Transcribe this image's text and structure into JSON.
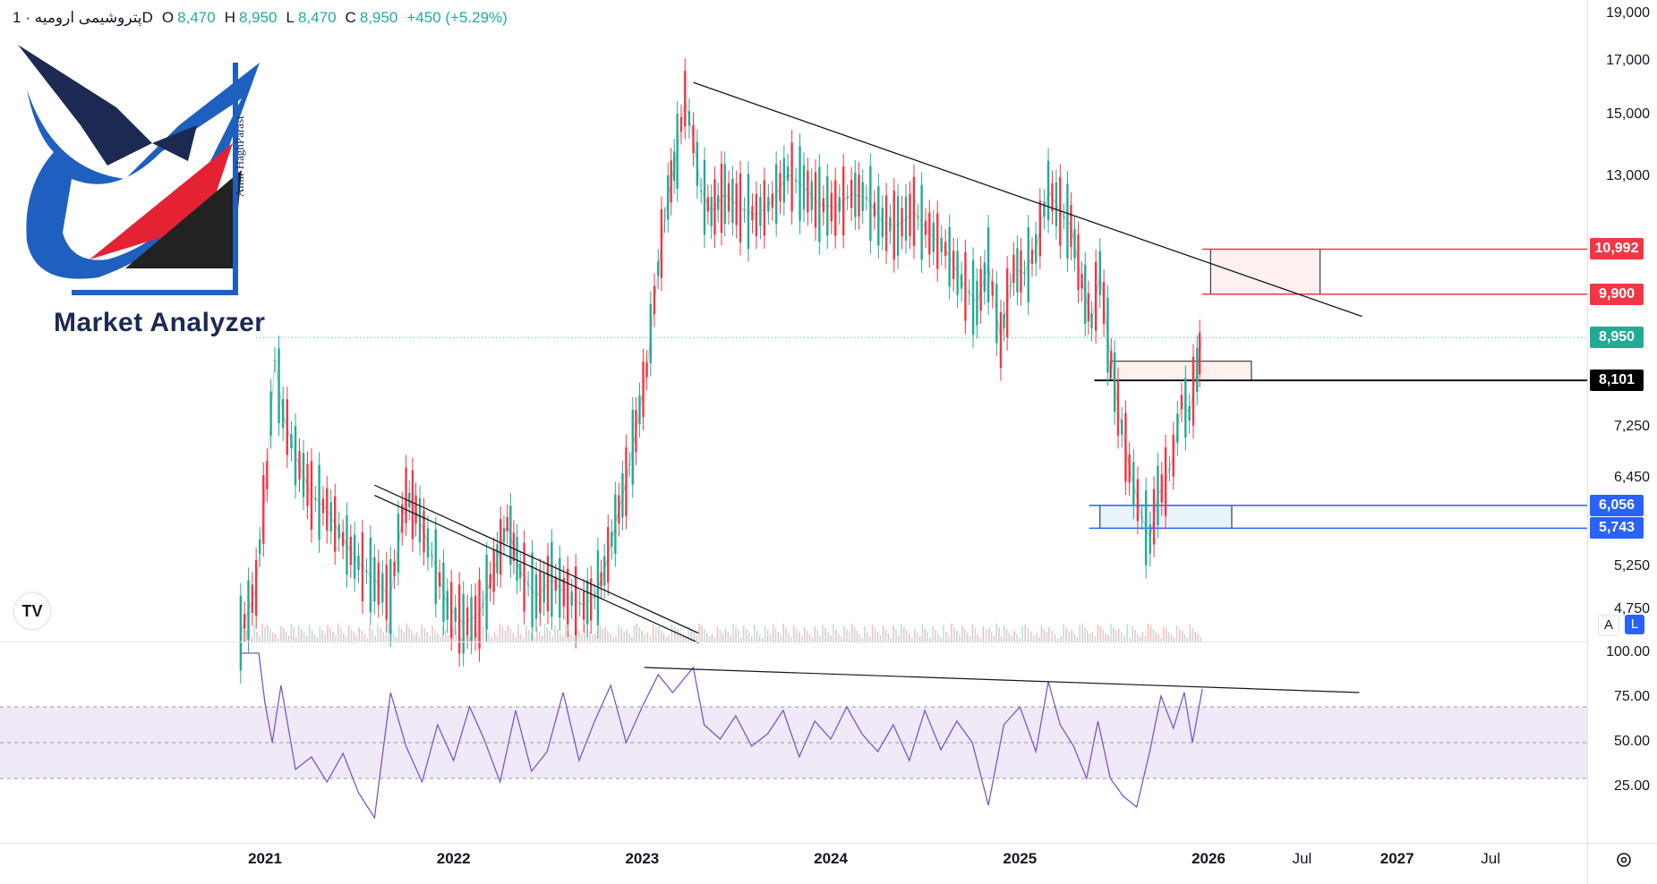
{
  "header": {
    "symbol": "پتروشیمی ارومیه · 1D",
    "o_label": "O",
    "o_value": "8,470",
    "h_label": "H",
    "h_value": "8,950",
    "l_label": "L",
    "l_value": "8,470",
    "c_label": "C",
    "c_value": "8,950",
    "change": "+450 (+5.29%)"
  },
  "logo": {
    "text": "Market Analyzer",
    "signature": "Amir HaghParast"
  },
  "colors": {
    "up": "#22ab94",
    "down": "#f23645",
    "resistance": "#f23645",
    "support": "#2962ff",
    "rsi": "#7e57c2",
    "rsi_band": "#efe9f8",
    "trendline": "#131722"
  },
  "chart_data": [
    {
      "type": "line",
      "title": "",
      "xlabel": "",
      "ylabel": "",
      "x_ticks": [
        "2021",
        "2022",
        "2023",
        "2024",
        "2025",
        "2026",
        "Jul",
        "2027",
        "Jul"
      ],
      "y_ticks": [
        "19,000",
        "17,000",
        "15,000",
        "13,000",
        "10,992",
        "9,900",
        "8,950",
        "8,101",
        "7,250",
        "6,450",
        "6,056",
        "5,743",
        "5,250",
        "4,750"
      ],
      "ylim": [
        4450,
        19300
      ],
      "price_tags": [
        {
          "label": "10,992",
          "value": 10992,
          "kind": "resistance"
        },
        {
          "label": "9,900",
          "value": 9900,
          "kind": "resistance"
        },
        {
          "label": "8,950",
          "value": 8950,
          "kind": "last"
        },
        {
          "label": "8,101",
          "value": 8101,
          "kind": "level"
        },
        {
          "label": "6,056",
          "value": 6056,
          "kind": "support"
        },
        {
          "label": "5,743",
          "value": 5743,
          "kind": "support"
        }
      ],
      "series": [
        {
          "dates": [
            "2020-11-15",
            "2020-12-15",
            "2021-01-05",
            "2021-01-20",
            "2021-02-05",
            "2021-03-01",
            "2021-04-01",
            "2021-05-01",
            "2021-06-01",
            "2021-07-01",
            "2021-08-01",
            "2021-09-01",
            "2021-10-01",
            "2021-10-20",
            "2021-11-20",
            "2021-12-20",
            "2022-01-20",
            "2022-02-20",
            "2022-03-20",
            "2022-04-15",
            "2022-05-10",
            "2022-06-10",
            "2022-07-10",
            "2022-08-10",
            "2022-09-10",
            "2022-10-01",
            "2022-10-20",
            "2022-11-10",
            "2022-12-01",
            "2022-12-20",
            "2023-01-10",
            "2023-02-01",
            "2023-02-20",
            "2023-03-10",
            "2023-03-25",
            "2023-04-10",
            "2023-04-25",
            "2023-05-15",
            "2023-06-10",
            "2023-07-10",
            "2023-08-10",
            "2023-09-10",
            "2023-10-10",
            "2023-11-10",
            "2023-12-10",
            "2024-01-10",
            "2024-02-10",
            "2024-03-10",
            "2024-04-10",
            "2024-05-10",
            "2024-06-10",
            "2024-07-10",
            "2024-08-10",
            "2024-09-10",
            "2024-10-10",
            "2024-11-01",
            "2024-11-25",
            "2024-12-20",
            "2025-01-10",
            "2025-02-01",
            "2025-02-25",
            "2025-03-20",
            "2025-04-10",
            "2025-05-01",
            "2025-05-20",
            "2025-06-05",
            "2025-06-20",
            "2025-07-10",
            "2025-08-01",
            "2025-08-25",
            "2025-09-10",
            "2025-09-25",
            "2025-10-10",
            "2025-10-25",
            "2025-11-10",
            "2025-11-25",
            "2025-12-10",
            "2025-12-20"
          ],
          "values": [
            4500,
            5000,
            6500,
            8500,
            7500,
            6800,
            6200,
            6000,
            5600,
            5300,
            5100,
            4900,
            6200,
            6000,
            5400,
            4800,
            4600,
            4700,
            5200,
            5800,
            5200,
            4900,
            5100,
            4900,
            4800,
            4900,
            5200,
            5800,
            6400,
            7200,
            8300,
            10500,
            12400,
            13800,
            15600,
            14200,
            12600,
            12000,
            12500,
            12100,
            11900,
            12300,
            13100,
            12700,
            12200,
            12100,
            12500,
            12400,
            11700,
            11600,
            12000,
            11400,
            11000,
            10200,
            9700,
            10600,
            8900,
            10500,
            10400,
            11000,
            12600,
            12000,
            11600,
            10200,
            9300,
            10400,
            9000,
            7600,
            6600,
            5900,
            5600,
            6200,
            6400,
            6800,
            7700,
            7500,
            8300,
            8950
          ]
        }
      ],
      "zones": [
        {
          "name": "resistance-zone",
          "from_date": "2026-01-05",
          "to_date": "2026-08-05",
          "low": 9900,
          "high": 10992
        },
        {
          "name": "pivot-zone",
          "from_date": "2025-06-25",
          "to_date": "2026-03-25",
          "low": 8101,
          "high": 8470
        },
        {
          "name": "support-zone",
          "from_date": "2025-06-05",
          "to_date": "2026-02-15",
          "low": 5743,
          "high": 6056
        }
      ],
      "trendlines": [
        {
          "name": "descending-resistance",
          "p1": [
            "2023-04-10",
            16200
          ],
          "p2": [
            "2026-10-25",
            9400
          ]
        },
        {
          "name": "channel-upper",
          "p1": [
            "2021-08-01",
            6350
          ],
          "p2": [
            "2023-04-20",
            4500
          ]
        },
        {
          "name": "channel-lower",
          "p1": [
            "2021-08-01",
            6200
          ],
          "p2": [
            "2023-04-20",
            4400
          ]
        }
      ],
      "levels": [
        {
          "name": "level-8101",
          "value": 8101,
          "from_date": "2025-05-25"
        },
        {
          "name": "last-price",
          "value": 8950,
          "from_date": "2020-12-15"
        }
      ]
    },
    {
      "type": "line",
      "title": "",
      "y_ticks": [
        "100.00",
        "75.00",
        "50.00",
        "25.00"
      ],
      "ylim": [
        0,
        105
      ],
      "band": [
        30,
        70
      ],
      "series": [
        {
          "dates": [
            "2020-11-15",
            "2020-12-20",
            "2021-01-01",
            "2021-01-15",
            "2021-02-01",
            "2021-03-01",
            "2021-04-01",
            "2021-05-01",
            "2021-06-01",
            "2021-07-01",
            "2021-08-01",
            "2021-08-15",
            "2021-09-01",
            "2021-10-01",
            "2021-11-01",
            "2021-12-01",
            "2022-01-01",
            "2022-02-01",
            "2022-03-01",
            "2022-04-01",
            "2022-05-01",
            "2022-06-01",
            "2022-07-01",
            "2022-08-01",
            "2022-09-01",
            "2022-10-01",
            "2022-11-01",
            "2022-12-01",
            "2023-01-01",
            "2023-02-01",
            "2023-03-01",
            "2023-04-10",
            "2023-05-01",
            "2023-06-01",
            "2023-07-01",
            "2023-08-01",
            "2023-09-01",
            "2023-10-01",
            "2023-11-01",
            "2023-12-01",
            "2024-01-01",
            "2024-02-01",
            "2024-03-01",
            "2024-04-01",
            "2024-05-01",
            "2024-06-01",
            "2024-07-01",
            "2024-08-01",
            "2024-09-01",
            "2024-10-01",
            "2024-11-01",
            "2024-12-01",
            "2025-01-01",
            "2025-02-01",
            "2025-02-25",
            "2025-03-20",
            "2025-04-15",
            "2025-05-10",
            "2025-06-01",
            "2025-06-25",
            "2025-07-20",
            "2025-08-15",
            "2025-09-10",
            "2025-10-01",
            "2025-10-25",
            "2025-11-15",
            "2025-12-01",
            "2025-12-20"
          ],
          "values": [
            100,
            100,
            72,
            50,
            82,
            35,
            42,
            28,
            44,
            22,
            8,
            40,
            78,
            48,
            28,
            60,
            40,
            70,
            52,
            28,
            68,
            34,
            45,
            78,
            40,
            62,
            82,
            50,
            70,
            88,
            78,
            92,
            60,
            52,
            65,
            48,
            55,
            68,
            42,
            62,
            52,
            70,
            55,
            45,
            60,
            40,
            68,
            46,
            62,
            50,
            15,
            60,
            70,
            45,
            84,
            60,
            48,
            30,
            62,
            30,
            20,
            14,
            46,
            76,
            58,
            78,
            50,
            80
          ]
        }
      ],
      "trendlines": [
        {
          "name": "rsi-trendline",
          "p1": [
            "2023-01-05",
            92
          ],
          "p2": [
            "2026-10-20",
            78
          ]
        }
      ]
    }
  ]
}
